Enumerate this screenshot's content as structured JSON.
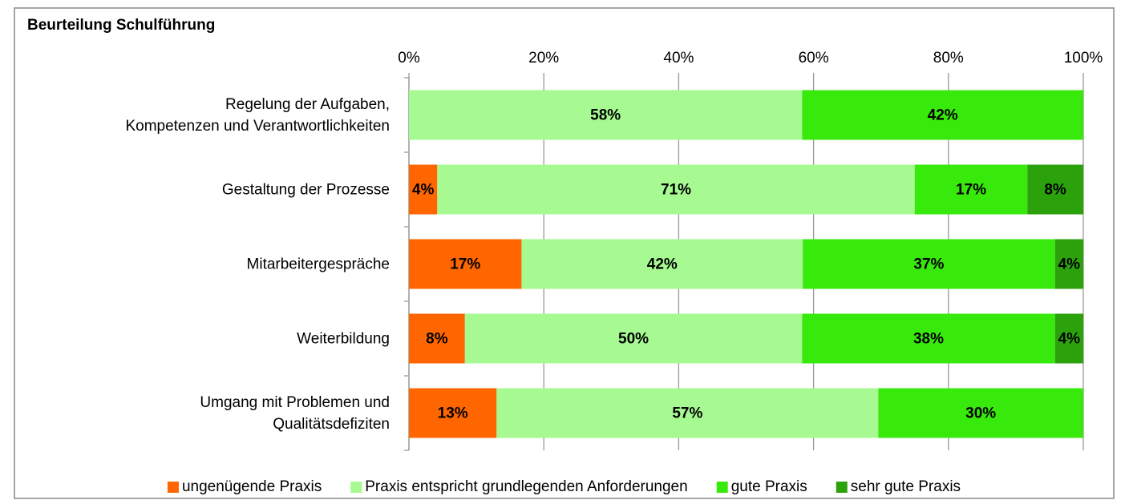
{
  "chart_data": {
    "type": "stacked-barh",
    "title": "Beurteilung Schulführung",
    "categories": [
      "Regelung der Aufgaben,\nKompetenzen und Verantwortlichkeiten",
      "Gestaltung der Prozesse",
      "Mitarbeitergespräche",
      "Weiterbildung",
      "Umgang mit Problemen und\nQualitätsdefiziten"
    ],
    "series": [
      {
        "name": "ungenügende Praxis",
        "color": "#ff6600",
        "values": [
          0,
          4.2,
          16.7,
          8.3,
          13
        ],
        "value_labels": [
          null,
          "4%",
          "17%",
          "8%",
          "13%"
        ]
      },
      {
        "name": "Praxis entspricht grundlegenden Anforderungen",
        "color": "#a6fa91",
        "values": [
          58.3,
          70.8,
          41.7,
          50,
          56.6
        ],
        "value_labels": [
          "58%",
          "71%",
          "42%",
          "50%",
          "57%"
        ]
      },
      {
        "name": "gute Praxis",
        "color": "#38ea0c",
        "values": [
          41.7,
          16.7,
          37.4,
          37.5,
          30.4
        ],
        "value_labels": [
          "42%",
          "17%",
          "37%",
          "38%",
          "30%"
        ]
      },
      {
        "name": "sehr gute Praxis",
        "color": "#2ba20c",
        "values": [
          0,
          8.3,
          4.2,
          4.2,
          0
        ],
        "value_labels": [
          null,
          "8%",
          "4%",
          "4%",
          null
        ]
      }
    ],
    "xlim": [
      0,
      100
    ],
    "xticks": [
      {
        "value": 0,
        "label": "0%"
      },
      {
        "value": 20,
        "label": "20%"
      },
      {
        "value": 40,
        "label": "40%"
      },
      {
        "value": 60,
        "label": "60%"
      },
      {
        "value": 80,
        "label": "80%"
      },
      {
        "value": 100,
        "label": "100%"
      }
    ],
    "grid": true,
    "legend": "bottom"
  }
}
